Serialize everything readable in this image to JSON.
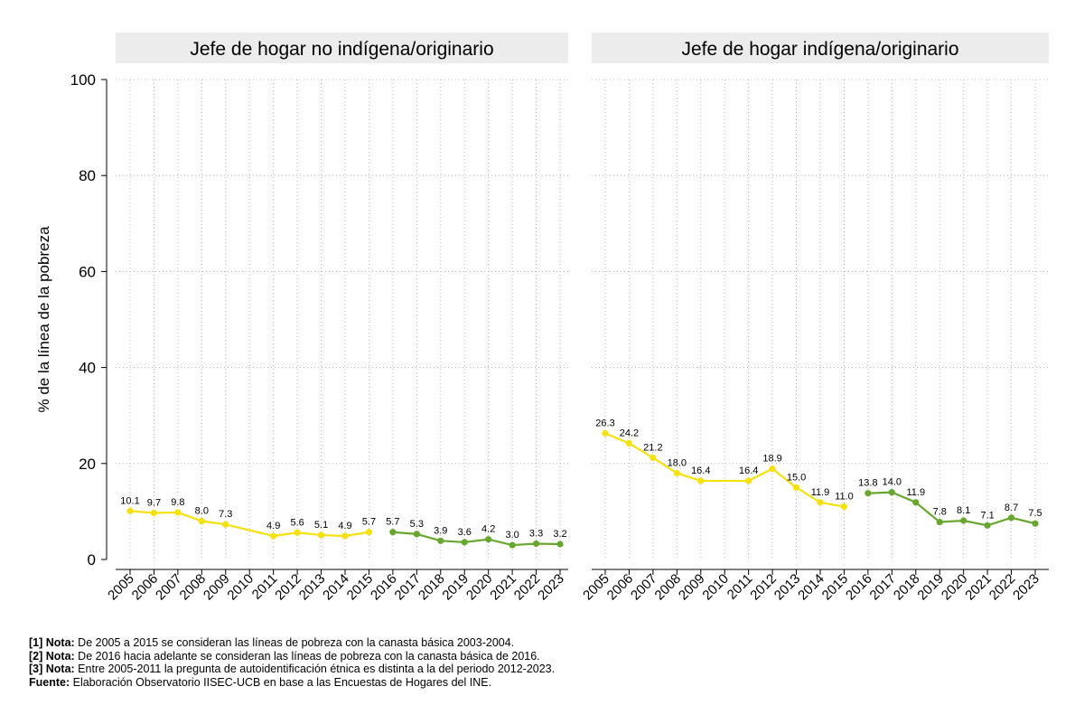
{
  "chart_data": {
    "type": "line",
    "ylabel": "% de la línea de la pobreza",
    "ylim": [
      0,
      100
    ],
    "yticks": [
      0,
      20,
      40,
      60,
      80,
      100
    ],
    "x": [
      2005,
      2006,
      2007,
      2008,
      2009,
      2010,
      2011,
      2012,
      2013,
      2014,
      2015,
      2016,
      2017,
      2018,
      2019,
      2020,
      2021,
      2022,
      2023
    ],
    "colors": {
      "series_2005_2015": "#f5e10f",
      "series_2016_2023": "#68a72f",
      "panel_header": "#ececec",
      "grid": "#b8b8b8"
    },
    "panels": [
      {
        "title": "Jefe de hogar no indígena/originario",
        "series": [
          {
            "name": "2005-2015",
            "x": [
              2005,
              2006,
              2007,
              2008,
              2009,
              2011,
              2012,
              2013,
              2014,
              2015
            ],
            "values": [
              10.1,
              9.7,
              9.8,
              8.0,
              7.3,
              4.9,
              5.6,
              5.1,
              4.9,
              5.7
            ],
            "labels": [
              "10.1",
              "9.7",
              "9.8",
              "8.0",
              "7.3",
              "4.9",
              "5.6",
              "5.1",
              "4.9",
              "5.7"
            ]
          },
          {
            "name": "2016-2023",
            "x": [
              2016,
              2017,
              2018,
              2019,
              2020,
              2021,
              2022,
              2023
            ],
            "values": [
              5.7,
              5.3,
              3.9,
              3.6,
              4.2,
              3.0,
              3.3,
              3.2
            ],
            "labels": [
              "5.7",
              "5.3",
              "3.9",
              "3.6",
              "4.2",
              "3.0",
              "3.3",
              "3.2"
            ]
          }
        ]
      },
      {
        "title": "Jefe de hogar indígena/originario",
        "series": [
          {
            "name": "2005-2015",
            "x": [
              2005,
              2006,
              2007,
              2008,
              2009,
              2011,
              2012,
              2013,
              2014,
              2015
            ],
            "values": [
              26.3,
              24.2,
              21.2,
              18.0,
              16.4,
              16.4,
              18.9,
              15.0,
              11.9,
              11.0
            ],
            "labels": [
              "26.3",
              "24.2",
              "21.2",
              "18.0",
              "16.4",
              "16.4",
              "18.9",
              "15.0",
              "11.9",
              "11.0"
            ]
          },
          {
            "name": "2016-2023",
            "x": [
              2016,
              2017,
              2018,
              2019,
              2020,
              2021,
              2022,
              2023
            ],
            "values": [
              13.8,
              14.0,
              11.9,
              7.8,
              8.1,
              7.1,
              8.7,
              7.5
            ],
            "labels": [
              "13.8",
              "14.0",
              "11.9",
              "7.8",
              "8.1",
              "7.1",
              "8.7",
              "7.5"
            ]
          }
        ]
      }
    ]
  },
  "notes": [
    {
      "label": "[1] Nota:",
      "text": " De 2005 a 2015 se consideran las líneas de pobreza con la canasta básica 2003-2004."
    },
    {
      "label": "[2] Nota:",
      "text": " De 2016 hacia adelante se consideran las líneas de pobreza con la canasta básica de 2016."
    },
    {
      "label": "[3] Nota:",
      "text": " Entre 2005-2011 la pregunta de autoidentificación étnica es distinta a la del periodo 2012-2023."
    },
    {
      "label": "Fuente:",
      "text": " Elaboración Observatorio IISEC-UCB en base a las Encuestas de Hogares del INE."
    }
  ]
}
